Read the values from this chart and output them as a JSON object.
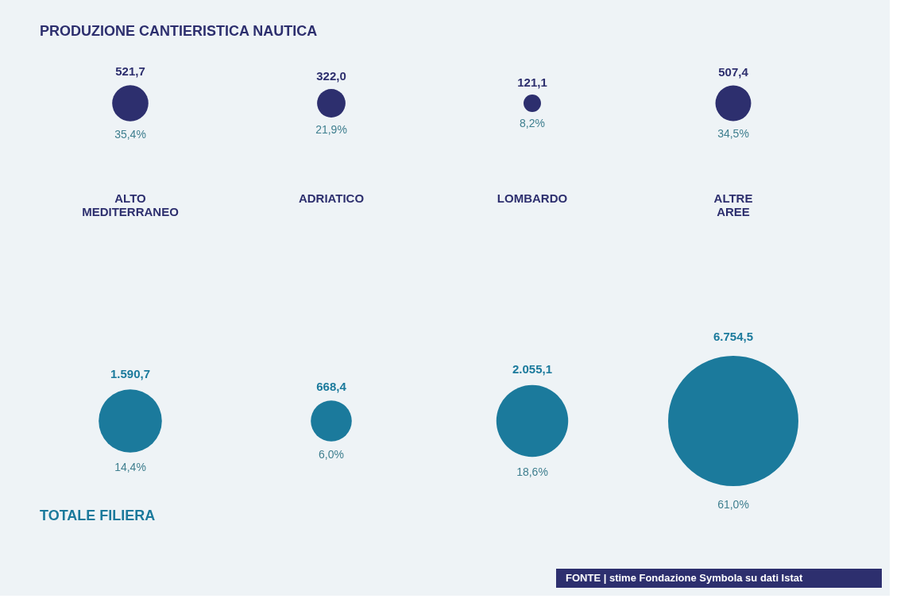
{
  "chart_data": {
    "type": "other",
    "categories": [
      "ALTO MEDITERRANEO",
      "ADRIATICO",
      "LOMBARDO",
      "ALTRE AREE"
    ],
    "series": [
      {
        "name": "PRODUZIONE CANTIERISTICA NAUTICA",
        "color": "#2d2f6e",
        "values": [
          521.7,
          322.0,
          121.1,
          507.4
        ],
        "value_labels": [
          "521,7",
          "322,0",
          "121,1",
          "507,4"
        ]
      },
      {
        "name": "TOTALE FILIERA",
        "color": "#1b7a9c",
        "values": [
          1590.7,
          668.4,
          2055.1,
          6754.5
        ],
        "value_labels": [
          "1.590,7",
          "668,4",
          "2.055,1",
          "6.754,5"
        ]
      }
    ],
    "annotations": [
      "35,4%",
      "21,9%",
      "8,2%",
      "34,5%",
      "14,4%",
      "6,0%",
      "18,6%",
      "61,0%",
      "FONTE | stime Fondazione Symbola su dati Istat"
    ]
  }
}
